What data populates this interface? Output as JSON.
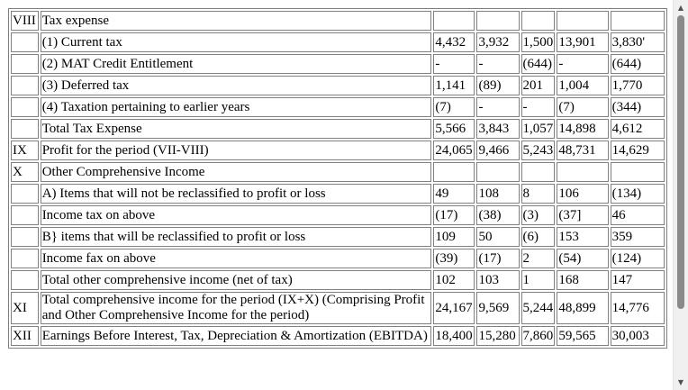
{
  "rows": [
    {
      "num": "VIII",
      "desc": "Tax expense",
      "v": [
        "",
        "",
        "",
        "",
        ""
      ]
    },
    {
      "num": "",
      "desc": "(1) Current tax",
      "v": [
        "4,432",
        "3,932",
        "1,500",
        "13,901",
        "3,830'"
      ]
    },
    {
      "num": "",
      "desc": "(2) MAT Credit Entitlement",
      "v": [
        "-",
        "-",
        "(644)",
        "-",
        "(644)"
      ]
    },
    {
      "num": "",
      "desc": "(3) Deferred tax",
      "v": [
        "1,141",
        "(89)",
        "201",
        "1,004",
        "1,770"
      ]
    },
    {
      "num": "",
      "desc": "(4) Taxation pertaining to earlier years",
      "v": [
        "(7)",
        "-",
        "-",
        "(7)",
        "(344)"
      ]
    },
    {
      "num": "",
      "desc": "Total Tax Expense",
      "v": [
        "5,566",
        "3,843",
        "1,057",
        "14,898",
        "4,612"
      ]
    },
    {
      "num": "IX",
      "desc": "Profit for the period (VII-VIII)",
      "v": [
        "24,065",
        "9,466",
        "5,243",
        "48,731",
        "14,629"
      ]
    },
    {
      "num": "X",
      "desc": "Other Comprehensive Income",
      "v": [
        "",
        "",
        "",
        "",
        ""
      ]
    },
    {
      "num": "",
      "desc": "A) Items that will not be reclassified to profit or loss",
      "v": [
        "49",
        "108",
        "8",
        "106",
        "(134)"
      ]
    },
    {
      "num": "",
      "desc": "Income tax on above",
      "v": [
        "(17)",
        "(38)",
        "(3)",
        "(37]",
        "46"
      ]
    },
    {
      "num": "",
      "desc": "B} items that will be reclassified to profit or loss",
      "v": [
        "109",
        "50",
        "(6)",
        "153",
        "359"
      ]
    },
    {
      "num": "",
      "desc": "Income fax on above",
      "v": [
        "(39)",
        "(17)",
        "2",
        "(54)",
        "(124)"
      ]
    },
    {
      "num": "",
      "desc": "Total other comprehensive income (net of tax)",
      "v": [
        "102",
        "103",
        "1",
        "168",
        "147"
      ]
    },
    {
      "num": "XI",
      "desc": "Total comprehensive income for the period (IX+X) (Comprising Profit and Other Comprehensive Income for the period)",
      "v": [
        "24,167",
        "9,569",
        "5,244",
        "48,899",
        "14,776"
      ]
    },
    {
      "num": "XII",
      "desc": "Earnings Before Interest, Tax, Depreciation & Amortization (EBITDA)",
      "v": [
        "18,400",
        "15,280",
        "7,860",
        "59,565",
        "30,003"
      ]
    }
  ],
  "scrollbar": {
    "up_icon": "triangle-up-icon",
    "down_icon": "triangle-down-icon"
  }
}
